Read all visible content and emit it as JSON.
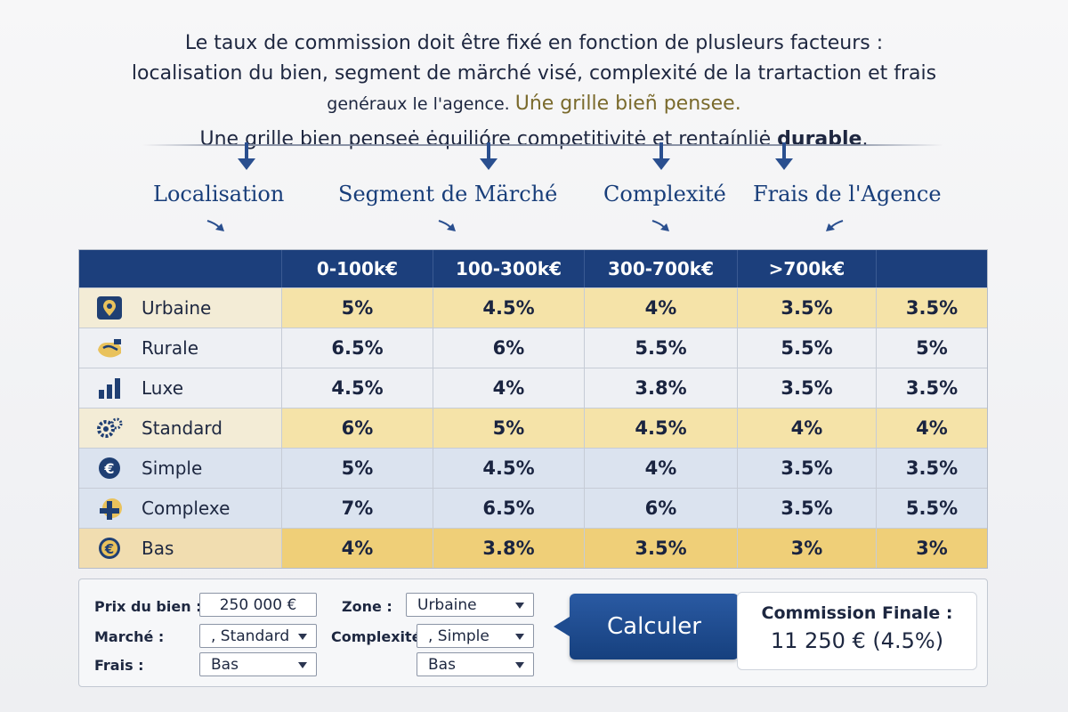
{
  "intro": {
    "line1": "Le taux de commission doit être fixé en fonction de plusleurs facteurs :",
    "line2": "localisation du bien, segment de märché visé, complexité de la trartaction et frais",
    "line3a": "genéraux le l'agence. ",
    "line3b": "Uńe grille bieñ pensee.",
    "line4a": "Une grille bien penseė ėquilióre competitivitė et rentaínliė ",
    "line4b": "durable",
    "line4c": "."
  },
  "factors": [
    "Localisation",
    "Segment de Märché",
    "Complexité",
    "Frais de l'Agence"
  ],
  "table": {
    "headers": [
      "",
      "0-100k€",
      "100-300k€",
      "300-700k€",
      ">700k€",
      ""
    ],
    "rows": [
      {
        "label": "Urbaine",
        "icon": "map-pin-icon",
        "values": [
          "5%",
          "4.5%",
          "4%",
          "3.5%",
          "3.5%"
        ]
      },
      {
        "label": "Rurale",
        "icon": "handshake-icon",
        "values": [
          "6.5%",
          "6%",
          "5.5%",
          "5.5%",
          "5%"
        ]
      },
      {
        "label": "Luxe",
        "icon": "bar-chart-icon",
        "values": [
          "4.5%",
          "4%",
          "3.8%",
          "3.5%",
          "3.5%"
        ]
      },
      {
        "label": "Standard",
        "icon": "gears-icon",
        "values": [
          "6%",
          "5%",
          "4.5%",
          "4%",
          "4%"
        ]
      },
      {
        "label": "Simple",
        "icon": "euro-coin-icon",
        "values": [
          "5%",
          "4.5%",
          "4%",
          "3.5%",
          "3.5%"
        ]
      },
      {
        "label": "Complexe",
        "icon": "puzzle-icon",
        "values": [
          "7%",
          "6.5%",
          "6%",
          "3.5%",
          "5.5%"
        ]
      },
      {
        "label": "Bas",
        "icon": "euro-coin-icon",
        "values": [
          "4%",
          "3.8%",
          "3.5%",
          "3%",
          "3%"
        ]
      }
    ]
  },
  "form": {
    "prix_label": "Prix du bien :",
    "prix_value": "250 000 €",
    "zone_label": "Zone :",
    "zone_value": "Urbaine",
    "marche_label": "Marché :",
    "marche_value": ", Standard",
    "complexite_label": "Complexité",
    "complexite_value": ", Simple",
    "frais_label": "Frais :",
    "frais_value": "Bas",
    "frais_value_2": "Bas",
    "calc_label": "Calculer",
    "result_title": "Commission Finale :",
    "result_value": "11 250 € (4.5%)"
  },
  "colors": {
    "header_blue": "#1c3f7c",
    "accent_gold": "#efcf78",
    "row_blue": "#dbe3ef"
  }
}
